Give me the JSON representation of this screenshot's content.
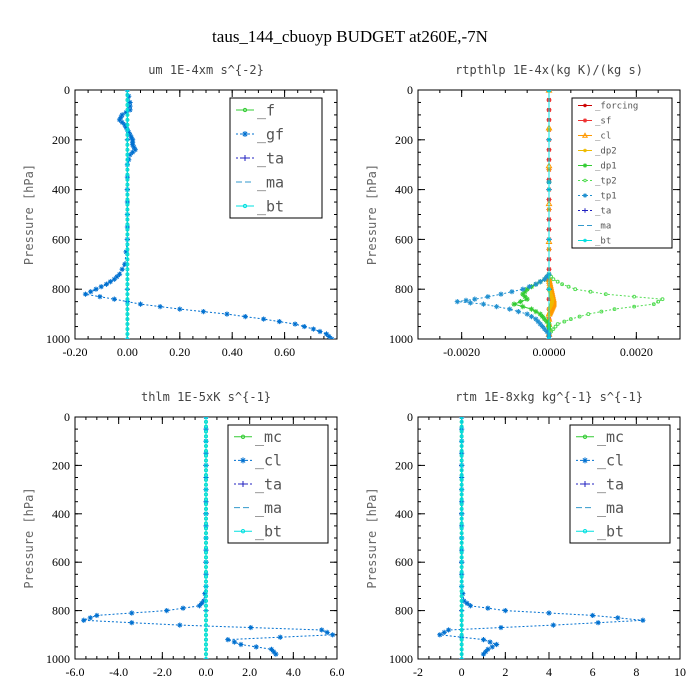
{
  "page_title": "taus_144_cbuoyp  BUDGET at260E,-7N",
  "chart_data": [
    {
      "type": "line",
      "title": "um  1E-4xm s^{-2}",
      "ylabel": "Pressure [hPa]",
      "xlim": [
        -0.2,
        0.8
      ],
      "ylim": [
        1000,
        0
      ],
      "x_ticks": [
        -0.2,
        0.0,
        0.2,
        0.4,
        0.6
      ],
      "x_tick_labels": [
        "-0.20",
        "0.00",
        "0.20",
        "0.40",
        "0.60"
      ],
      "y_ticks": [
        0,
        200,
        400,
        600,
        800,
        1000
      ],
      "y_tick_labels": [
        "0",
        "200",
        "400",
        "600",
        "800",
        "1000"
      ],
      "legend_size": "large",
      "series": [
        {
          "name": "_f",
          "color": "#33cc33",
          "marker": "circle",
          "dash": "",
          "pressure": [
            0,
            100,
            200,
            300,
            400,
            500,
            600,
            700,
            800,
            900,
            1000
          ],
          "values": [
            0,
            0,
            0,
            0,
            0,
            0,
            0,
            0,
            0,
            0,
            0
          ]
        },
        {
          "name": "_gf",
          "color": "#0070d0",
          "marker": "star",
          "dash": "2,2",
          "pressure": [
            0,
            50,
            80,
            100,
            120,
            140,
            160,
            180,
            200,
            220,
            240,
            260,
            300,
            400,
            500,
            600,
            700,
            740,
            760,
            780,
            800,
            820,
            840,
            860,
            880,
            900,
            920,
            940,
            960,
            980,
            1000
          ],
          "values": [
            0,
            0.01,
            0.01,
            -0.02,
            -0.03,
            -0.01,
            0,
            0.01,
            0.02,
            0.02,
            0.03,
            0.01,
            0,
            0,
            0,
            0,
            -0.01,
            -0.03,
            -0.05,
            -0.08,
            -0.12,
            -0.16,
            -0.05,
            0.05,
            0.2,
            0.38,
            0.52,
            0.64,
            0.71,
            0.76,
            0.78
          ]
        },
        {
          "name": "_ta",
          "color": "#2020c0",
          "marker": "plus",
          "dash": "2,2",
          "pressure": [
            0,
            1000
          ],
          "values": [
            0,
            0
          ]
        },
        {
          "name": "_ma",
          "color": "#3399cc",
          "marker": "",
          "dash": "6,3",
          "pressure": [
            0,
            1000
          ],
          "values": [
            0,
            0
          ]
        },
        {
          "name": "_bt",
          "color": "#00e0e0",
          "marker": "circle",
          "dash": "",
          "pressure": [
            0,
            100,
            200,
            300,
            400,
            500,
            600,
            700,
            800,
            900,
            1000
          ],
          "values": [
            0,
            0,
            0,
            0,
            0,
            0,
            0,
            0,
            0,
            0,
            0
          ]
        }
      ]
    },
    {
      "type": "line",
      "title": "rtpthlp  1E-4x(kg K)/(kg s)",
      "ylabel": "Pressure [hPa]",
      "xlim": [
        -0.003,
        0.003
      ],
      "ylim": [
        1000,
        0
      ],
      "x_ticks": [
        -0.002,
        0.0,
        0.002
      ],
      "x_tick_labels": [
        "-0.0020",
        "0.0000",
        "0.0020"
      ],
      "y_ticks": [
        0,
        200,
        400,
        600,
        800,
        1000
      ],
      "y_tick_labels": [
        "0",
        "200",
        "400",
        "600",
        "800",
        "1000"
      ],
      "legend_size": "small",
      "series": [
        {
          "name": "_forcing",
          "color": "#cc0000",
          "marker": "circle",
          "dash": "",
          "pressure": [
            0,
            200,
            400,
            600,
            800,
            1000
          ],
          "values": [
            0,
            0,
            0,
            0,
            0,
            0
          ]
        },
        {
          "name": "_sf",
          "color": "#ee3030",
          "marker": "star",
          "dash": "",
          "pressure": [
            0,
            200,
            400,
            600,
            800,
            1000
          ],
          "values": [
            0,
            0,
            0,
            0,
            0,
            0
          ]
        },
        {
          "name": "_cl",
          "color": "#ff9900",
          "marker": "triangle",
          "dash": "",
          "pressure": [
            0,
            760,
            800,
            840,
            860,
            880,
            900,
            1000
          ],
          "values": [
            0,
            0,
            5e-05,
            0.0001,
            0.0001,
            5e-05,
            0,
            0
          ]
        },
        {
          "name": "_dp2",
          "color": "#eebb00",
          "marker": "circle",
          "dash": "",
          "pressure": [
            0,
            800,
            840,
            860,
            880,
            1000
          ],
          "values": [
            0,
            0,
            8e-05,
            6e-05,
            0,
            0
          ]
        },
        {
          "name": "_dp1",
          "color": "#33cc33",
          "marker": "star",
          "dash": "",
          "pressure": [
            0,
            740,
            760,
            780,
            800,
            820,
            840,
            860,
            880,
            900,
            920,
            940,
            960,
            1000
          ],
          "values": [
            0,
            0,
            -0.0001,
            -0.0003,
            -0.0005,
            -0.0006,
            -0.0005,
            -0.0008,
            -0.0004,
            -0.0002,
            -0.0001,
            0,
            0,
            0
          ]
        },
        {
          "name": "_tp2",
          "color": "#55dd55",
          "marker": "circle",
          "dash": "2,2",
          "pressure": [
            0,
            740,
            760,
            780,
            800,
            820,
            840,
            860,
            880,
            900,
            920,
            940,
            960,
            980,
            1000
          ],
          "values": [
            0,
            0,
            0.0001,
            0.0003,
            0.0006,
            0.0013,
            0.0026,
            0.0024,
            0.0015,
            0.0009,
            0.0005,
            0.0002,
            0.0001,
            0,
            0
          ]
        },
        {
          "name": "_tp1",
          "color": "#2090d0",
          "marker": "star",
          "dash": "2,2",
          "pressure": [
            0,
            740,
            760,
            780,
            800,
            820,
            840,
            850,
            860,
            880,
            900,
            920,
            940,
            960,
            980,
            1000
          ],
          "values": [
            0,
            0,
            -0.0001,
            -0.0003,
            -0.0006,
            -0.0011,
            -0.0017,
            -0.0021,
            -0.0015,
            -0.0009,
            -0.0005,
            -0.0003,
            -0.0002,
            -0.0001,
            0,
            0
          ]
        },
        {
          "name": "_ta",
          "color": "#2020c0",
          "marker": "plus",
          "dash": "2,2",
          "pressure": [
            0,
            1000
          ],
          "values": [
            0,
            0
          ]
        },
        {
          "name": "_ma",
          "color": "#3399cc",
          "marker": "",
          "dash": "6,3",
          "pressure": [
            0,
            1000
          ],
          "values": [
            0,
            0
          ]
        },
        {
          "name": "_bt",
          "color": "#00e0e0",
          "marker": "circle",
          "dash": "",
          "pressure": [
            0,
            1000
          ],
          "values": [
            0,
            0
          ]
        }
      ]
    },
    {
      "type": "line",
      "title": "thlm  1E-5xK s^{-1}",
      "ylabel": "Pressure [hPa]",
      "xlim": [
        -6,
        6
      ],
      "ylim": [
        1000,
        0
      ],
      "x_ticks": [
        -6,
        -4,
        -2,
        0,
        2,
        4,
        6
      ],
      "x_tick_labels": [
        "-6.0",
        "-4.0",
        "-2.0",
        "0.0",
        "2.0",
        "4.0",
        "6.0"
      ],
      "y_ticks": [
        0,
        200,
        400,
        600,
        800,
        1000
      ],
      "y_tick_labels": [
        "0",
        "200",
        "400",
        "600",
        "800",
        "1000"
      ],
      "legend_size": "large",
      "series": [
        {
          "name": "_mc",
          "color": "#33cc33",
          "marker": "circle",
          "dash": "",
          "pressure": [
            0,
            100,
            200,
            300,
            400,
            500,
            600,
            700,
            800,
            900,
            1000
          ],
          "values": [
            0,
            0,
            0,
            0,
            0,
            0,
            0,
            0,
            0,
            0,
            0
          ]
        },
        {
          "name": "_cl",
          "color": "#0070d0",
          "marker": "star",
          "dash": "2,2",
          "pressure": [
            0,
            100,
            200,
            300,
            400,
            500,
            600,
            700,
            760,
            780,
            800,
            820,
            840,
            860,
            880,
            900,
            920,
            940,
            960,
            980
          ],
          "values": [
            0,
            0,
            0,
            0,
            0,
            0,
            0,
            0,
            -0.1,
            -0.3,
            -1.8,
            -5.0,
            -5.6,
            -1.2,
            5.3,
            5.8,
            1.0,
            1.6,
            3.0,
            3.2
          ]
        },
        {
          "name": "_ta",
          "color": "#2020c0",
          "marker": "plus",
          "dash": "2,2",
          "pressure": [
            0,
            1000
          ],
          "values": [
            0,
            0
          ]
        },
        {
          "name": "_ma",
          "color": "#3399cc",
          "marker": "",
          "dash": "6,3",
          "pressure": [
            0,
            1000
          ],
          "values": [
            0,
            0
          ]
        },
        {
          "name": "_bt",
          "color": "#00e0e0",
          "marker": "circle",
          "dash": "",
          "pressure": [
            0,
            100,
            200,
            300,
            400,
            500,
            600,
            700,
            800,
            900,
            1000
          ],
          "values": [
            0,
            0,
            0,
            0,
            0,
            0,
            0,
            0,
            0,
            0,
            0
          ]
        }
      ]
    },
    {
      "type": "line",
      "title": "rtm  1E-8xkg kg^{-1} s^{-1}",
      "ylabel": "Pressure [hPa]",
      "xlim": [
        -2,
        10
      ],
      "ylim": [
        1000,
        0
      ],
      "x_ticks": [
        -2,
        0,
        2,
        4,
        6,
        8,
        10
      ],
      "x_tick_labels": [
        "-2",
        "0",
        "2",
        "4",
        "6",
        "8",
        "10"
      ],
      "y_ticks": [
        0,
        200,
        400,
        600,
        800,
        1000
      ],
      "y_tick_labels": [
        "0",
        "200",
        "400",
        "600",
        "800",
        "1000"
      ],
      "legend_size": "large",
      "series": [
        {
          "name": "_mc",
          "color": "#33cc33",
          "marker": "circle",
          "dash": "",
          "pressure": [
            0,
            100,
            200,
            300,
            400,
            500,
            600,
            700,
            800,
            900,
            1000
          ],
          "values": [
            0,
            0,
            0,
            0,
            0,
            0,
            0,
            0,
            0,
            0,
            0
          ]
        },
        {
          "name": "_cl",
          "color": "#0070d0",
          "marker": "star",
          "dash": "2,2",
          "pressure": [
            0,
            100,
            200,
            300,
            400,
            500,
            600,
            700,
            760,
            780,
            800,
            820,
            840,
            860,
            880,
            900,
            920,
            940,
            960,
            980
          ],
          "values": [
            0,
            0,
            0,
            0,
            0,
            0,
            0,
            0,
            0.1,
            0.4,
            2.0,
            6.0,
            8.3,
            4.2,
            -0.6,
            -1.0,
            1.0,
            1.6,
            1.2,
            1.0
          ]
        },
        {
          "name": "_ta",
          "color": "#2020c0",
          "marker": "plus",
          "dash": "2,2",
          "pressure": [
            0,
            1000
          ],
          "values": [
            0,
            0
          ]
        },
        {
          "name": "_ma",
          "color": "#3399cc",
          "marker": "",
          "dash": "6,3",
          "pressure": [
            0,
            1000
          ],
          "values": [
            0,
            0
          ]
        },
        {
          "name": "_bt",
          "color": "#00e0e0",
          "marker": "circle",
          "dash": "",
          "pressure": [
            0,
            100,
            200,
            300,
            400,
            500,
            600,
            700,
            800,
            900,
            1000
          ],
          "values": [
            0,
            0,
            0,
            0,
            0,
            0,
            0,
            0,
            0,
            0,
            0
          ]
        }
      ]
    }
  ]
}
